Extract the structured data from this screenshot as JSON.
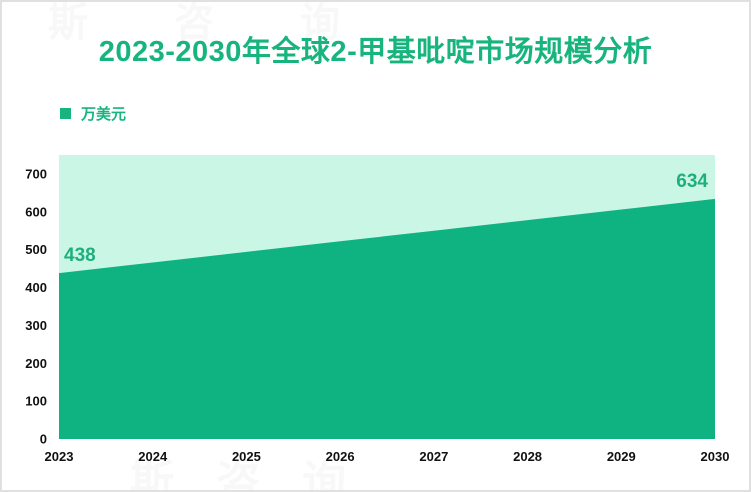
{
  "card": {
    "title": "2023-2030年全球2-甲基吡啶市场规模分析"
  },
  "legend": {
    "label": "万美元"
  },
  "watermark": {
    "text": "斯咨询"
  },
  "chart_data": {
    "type": "area",
    "title": "2023-2030年全球2-甲基吡啶市场规模分析",
    "unit": "万美元",
    "categories": [
      "2023",
      "2024",
      "2025",
      "2026",
      "2027",
      "2028",
      "2029",
      "2030"
    ],
    "series": [
      {
        "name": "万美元",
        "values": [
          438,
          466,
          494,
          522,
          550,
          578,
          606,
          634
        ]
      }
    ],
    "data_labels": [
      {
        "category": "2023",
        "index": 0,
        "text": "438"
      },
      {
        "category": "2030",
        "index": 7,
        "text": "634"
      }
    ],
    "ylim": [
      0,
      750
    ],
    "yticks": [
      0,
      100,
      200,
      300,
      400,
      500,
      600,
      700
    ],
    "grid": false,
    "legend_position": "top-left",
    "colors": {
      "accent": "#17b47e",
      "area_fill": "#0fb381",
      "plot_background": "#c9f6e5",
      "data_label": "#1fae7e",
      "axis_text": "#111111"
    }
  }
}
